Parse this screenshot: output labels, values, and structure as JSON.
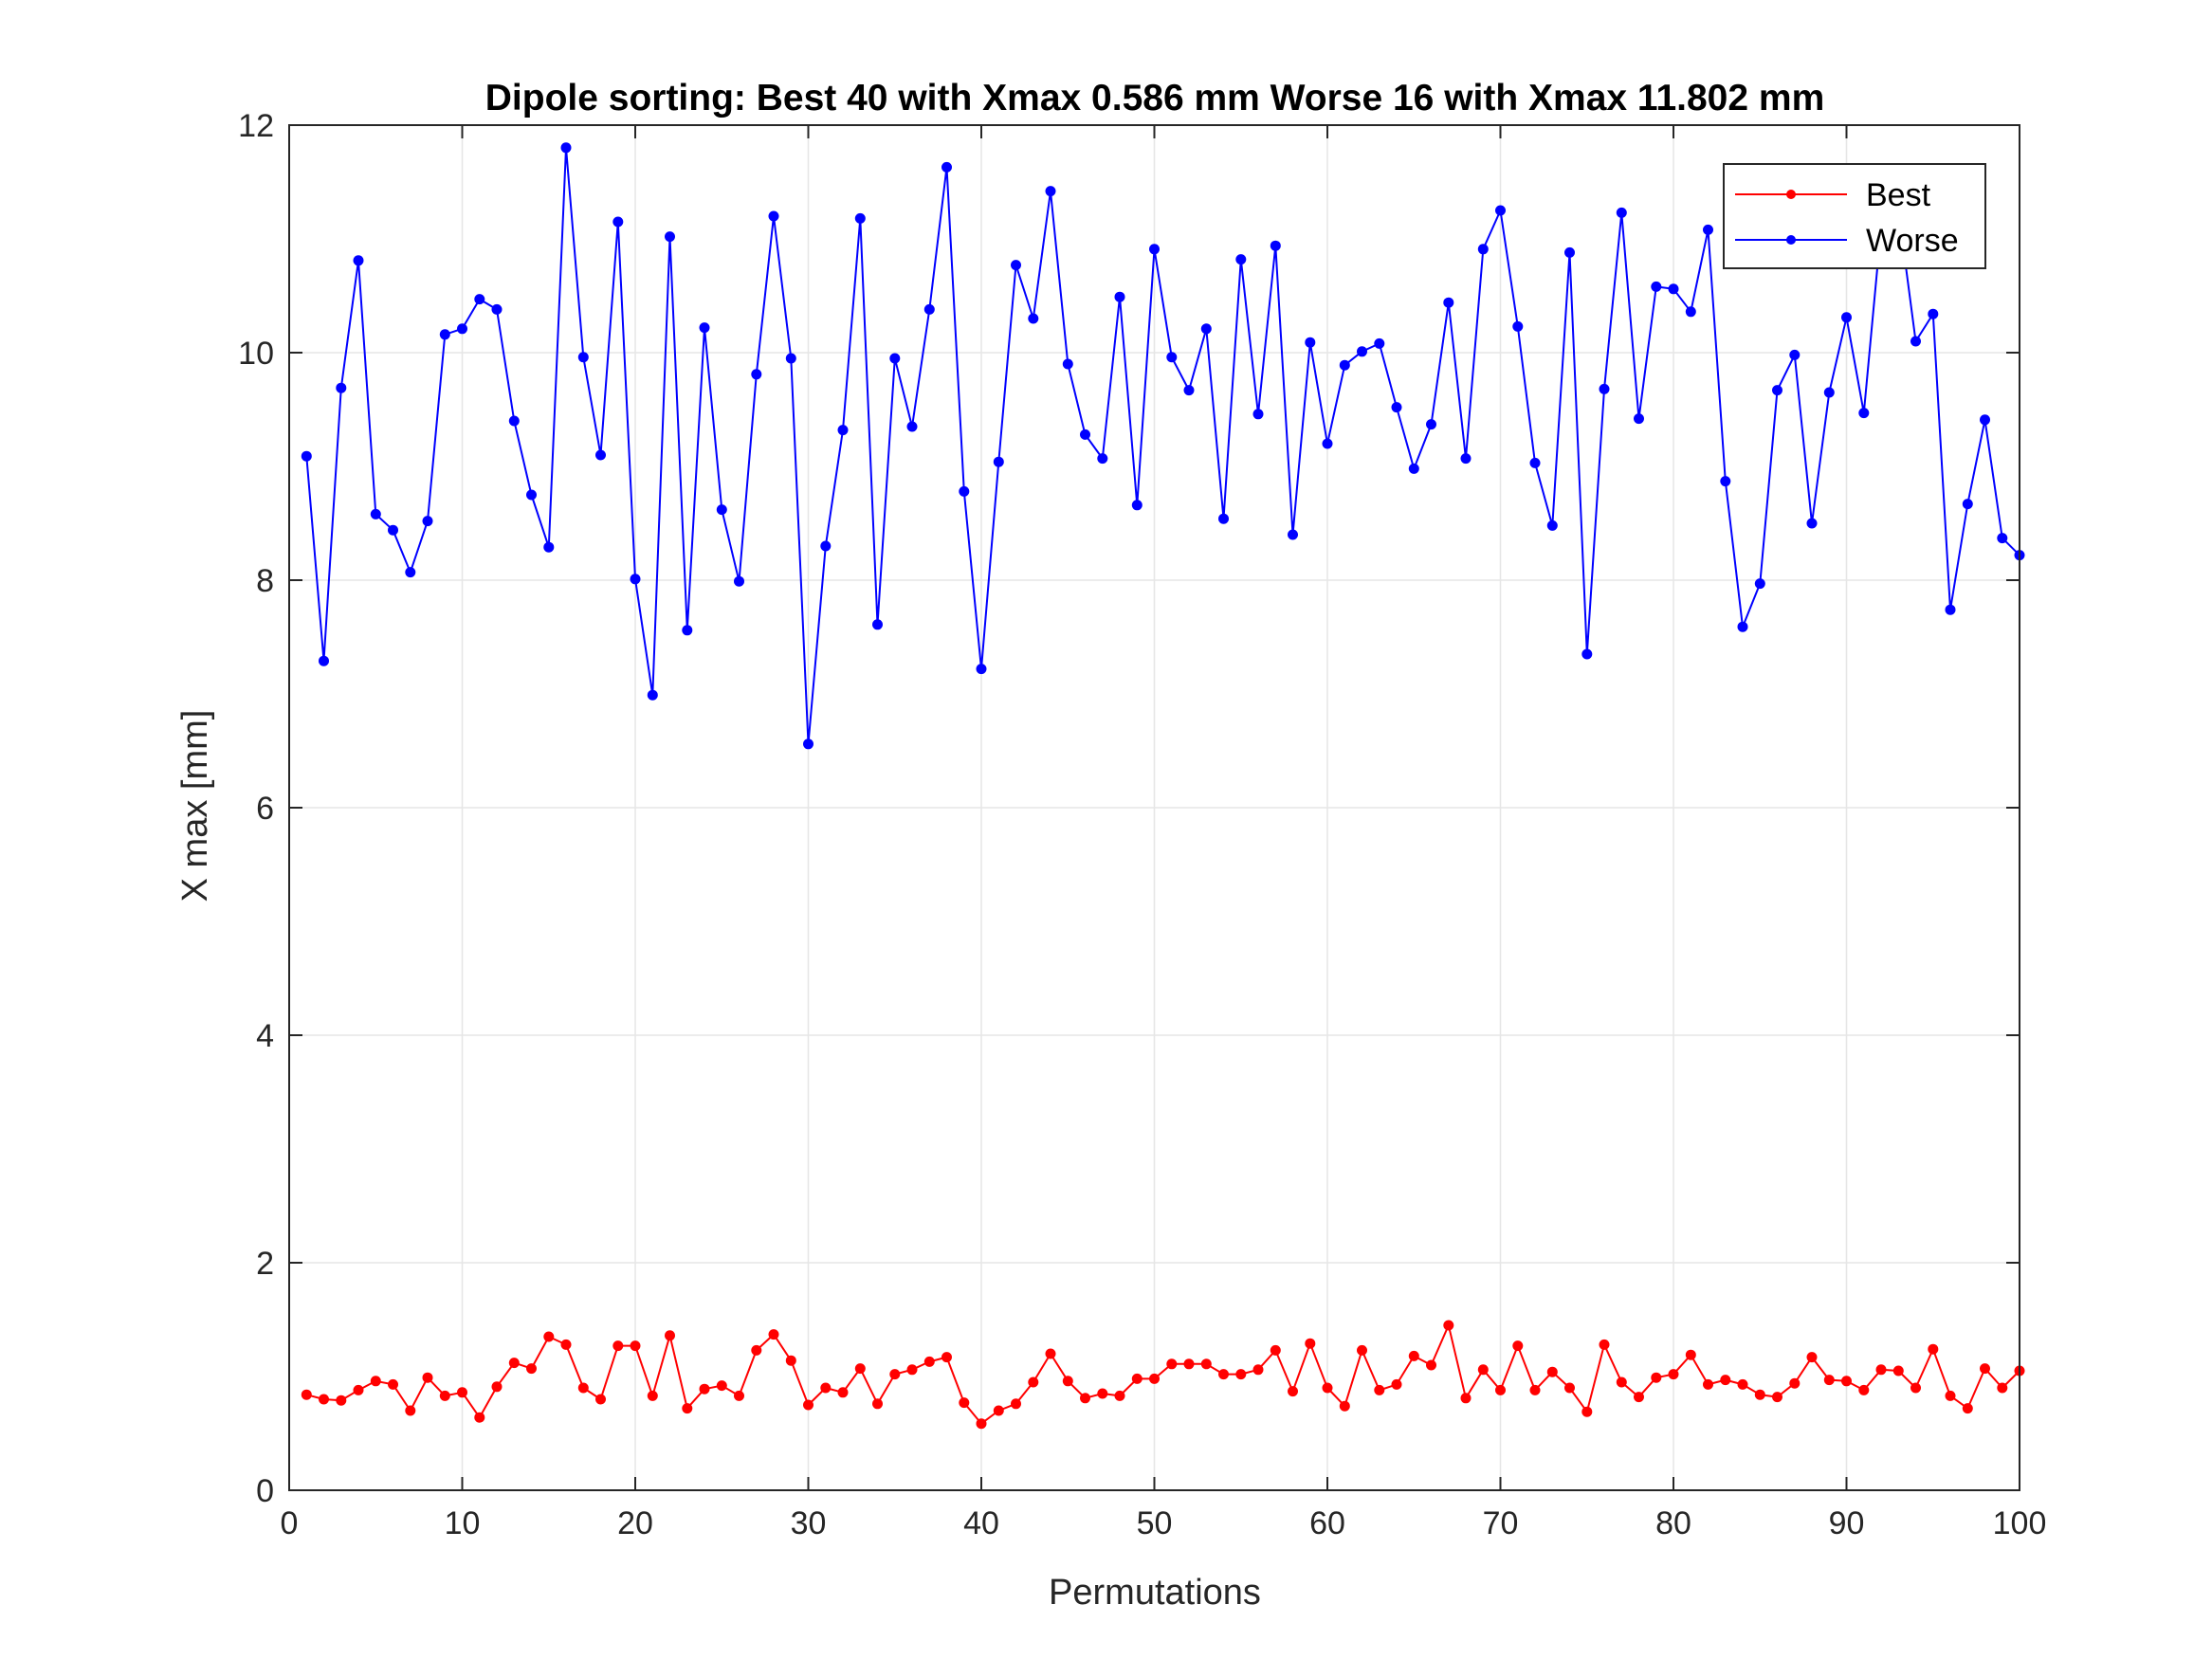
{
  "chart_data": {
    "type": "line",
    "title": "Dipole sorting:  Best 40 with Xmax 0.586 mm  Worse 16 with Xmax 11.802 mm",
    "xlabel": "Permutations",
    "ylabel": "X max [mm]",
    "xlim": [
      0,
      100
    ],
    "ylim": [
      0,
      12
    ],
    "xticks": [
      "0",
      "10",
      "20",
      "30",
      "40",
      "50",
      "60",
      "70",
      "80",
      "90",
      "100"
    ],
    "yticks": [
      "0",
      "2",
      "4",
      "6",
      "8",
      "10",
      "12"
    ],
    "grid": true,
    "legend_position": "top-right",
    "x": [
      1,
      2,
      3,
      4,
      5,
      6,
      7,
      8,
      9,
      10,
      11,
      12,
      13,
      14,
      15,
      16,
      17,
      18,
      19,
      20,
      21,
      22,
      23,
      24,
      25,
      26,
      27,
      28,
      29,
      30,
      31,
      32,
      33,
      34,
      35,
      36,
      37,
      38,
      39,
      40,
      41,
      42,
      43,
      44,
      45,
      46,
      47,
      48,
      49,
      50,
      51,
      52,
      53,
      54,
      55,
      56,
      57,
      58,
      59,
      60,
      61,
      62,
      63,
      64,
      65,
      66,
      67,
      68,
      69,
      70,
      71,
      72,
      73,
      74,
      75,
      76,
      77,
      78,
      79,
      80,
      81,
      82,
      83,
      84,
      85,
      86,
      87,
      88,
      89,
      90,
      91,
      92,
      93,
      94,
      95,
      96,
      97,
      98,
      99,
      100
    ],
    "series": [
      {
        "name": "Best",
        "color": "#ff0000",
        "values": [
          0.84,
          0.8,
          0.79,
          0.88,
          0.96,
          0.93,
          0.7,
          0.99,
          0.83,
          0.86,
          0.64,
          0.91,
          1.12,
          1.07,
          1.35,
          1.28,
          0.9,
          0.8,
          1.27,
          1.27,
          0.83,
          1.36,
          0.72,
          0.89,
          0.92,
          0.83,
          1.23,
          1.37,
          1.14,
          0.75,
          0.9,
          0.86,
          1.07,
          0.76,
          1.02,
          1.06,
          1.13,
          1.17,
          0.77,
          0.586,
          0.7,
          0.76,
          0.95,
          1.2,
          0.96,
          0.81,
          0.85,
          0.83,
          0.98,
          0.98,
          1.11,
          1.11,
          1.11,
          1.02,
          1.02,
          1.06,
          1.23,
          0.87,
          1.29,
          0.9,
          0.74,
          1.23,
          0.88,
          0.93,
          1.18,
          1.1,
          1.45,
          0.81,
          1.06,
          0.88,
          1.27,
          0.88,
          1.04,
          0.9,
          0.69,
          1.28,
          0.95,
          0.82,
          0.99,
          1.02,
          1.19,
          0.93,
          0.97,
          0.93,
          0.84,
          0.82,
          0.94,
          1.17,
          0.97,
          0.96,
          0.88,
          1.06,
          1.05,
          0.9,
          1.24,
          0.83,
          0.72,
          1.07,
          0.9,
          1.05
        ]
      },
      {
        "name": "Worse",
        "color": "#0000ff",
        "values": [
          9.09,
          7.29,
          9.69,
          10.81,
          8.58,
          8.44,
          8.07,
          8.52,
          10.16,
          10.21,
          10.47,
          10.38,
          9.4,
          8.75,
          8.29,
          11.802,
          9.96,
          9.1,
          11.15,
          8.01,
          6.99,
          11.02,
          7.56,
          10.22,
          8.62,
          7.99,
          9.81,
          11.2,
          9.95,
          6.56,
          8.3,
          9.32,
          11.18,
          7.61,
          9.95,
          9.35,
          10.38,
          11.63,
          8.78,
          7.22,
          9.04,
          10.77,
          10.3,
          11.42,
          9.9,
          9.28,
          9.07,
          10.49,
          8.66,
          10.91,
          9.96,
          9.67,
          10.21,
          8.54,
          10.82,
          9.46,
          10.94,
          8.4,
          10.09,
          9.2,
          9.89,
          10.01,
          10.08,
          9.52,
          8.98,
          9.37,
          10.44,
          9.07,
          10.91,
          11.25,
          10.23,
          9.03,
          8.48,
          10.88,
          7.35,
          9.68,
          11.23,
          9.42,
          10.58,
          10.56,
          10.36,
          11.08,
          8.87,
          7.59,
          7.97,
          9.67,
          9.98,
          8.5,
          9.65,
          10.31,
          9.47,
          11.1,
          11.25,
          10.1,
          10.34,
          7.74,
          8.67,
          9.41,
          8.37,
          8.22
        ]
      }
    ]
  }
}
